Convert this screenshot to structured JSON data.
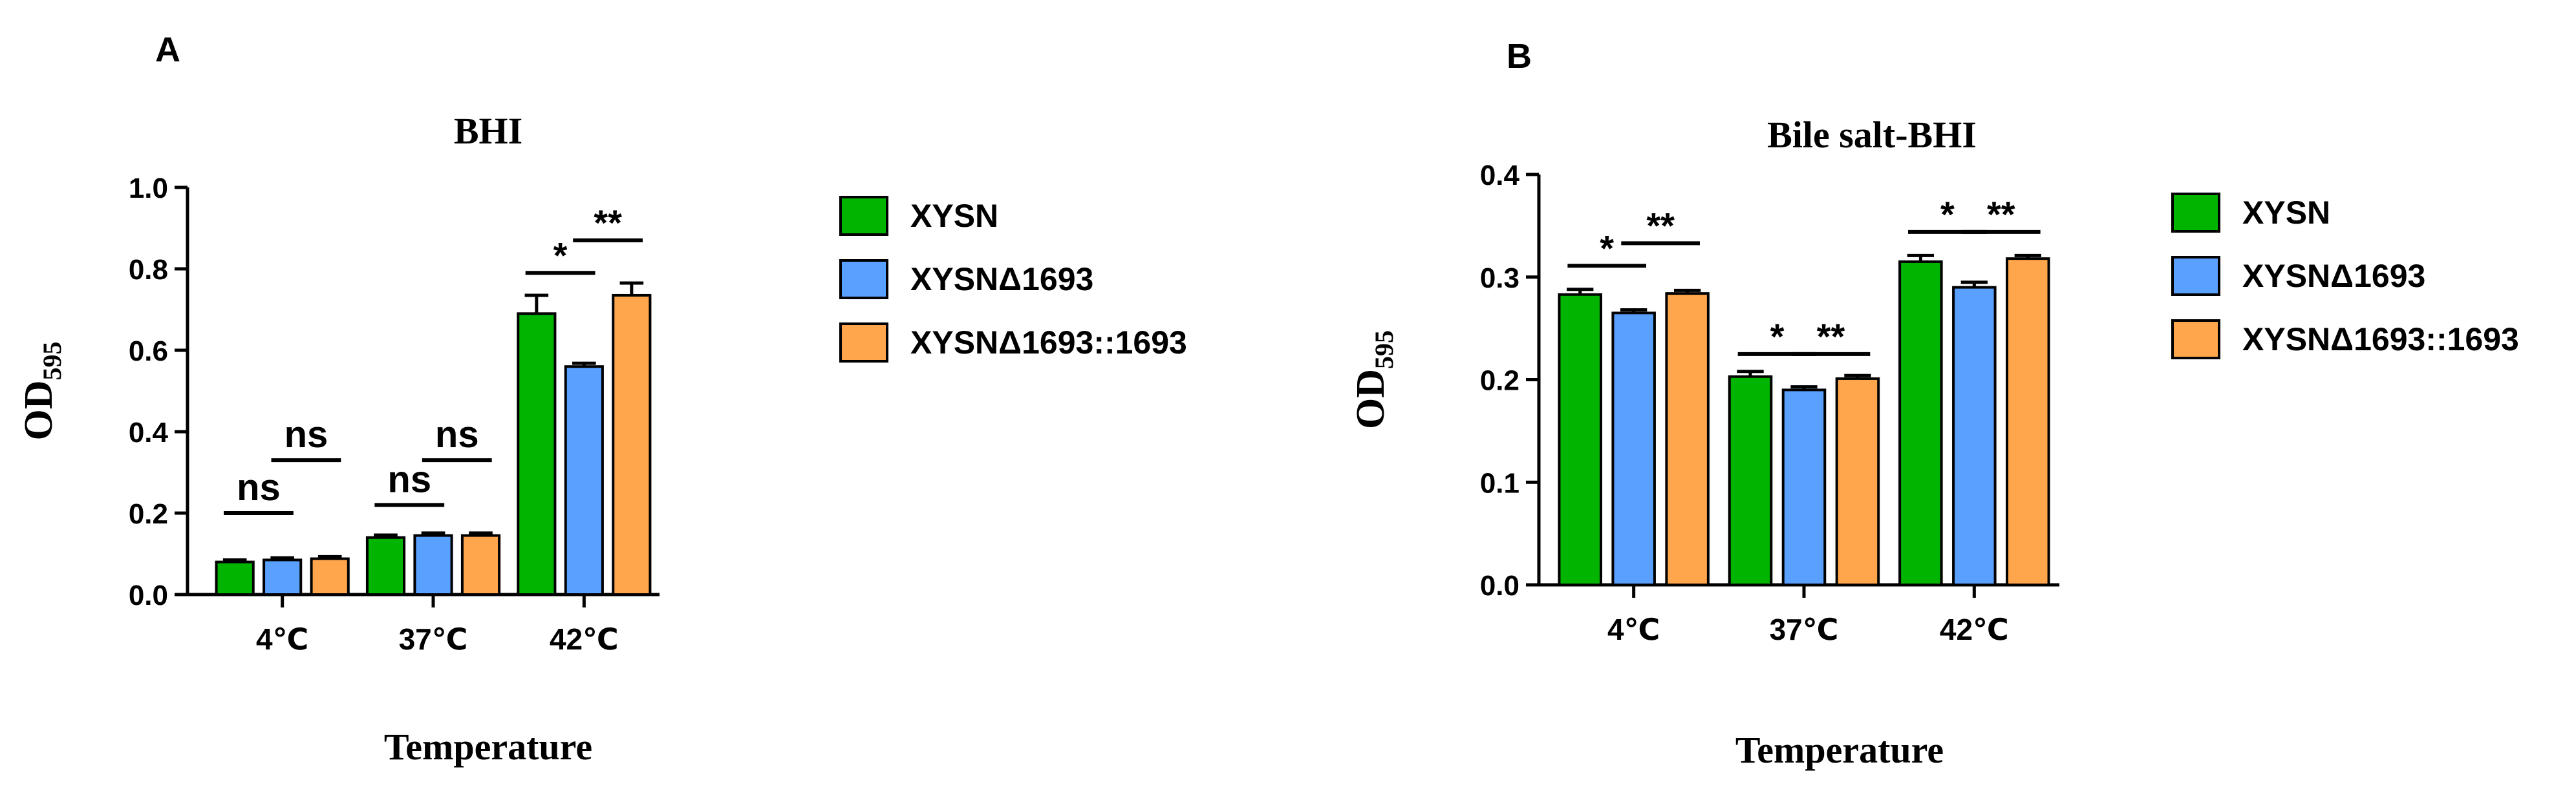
{
  "panels": [
    {
      "letter": "A",
      "chart_data": {
        "type": "bar",
        "title": "BHI",
        "xlabel": "Temperature",
        "ylabel": "OD",
        "ylabel_sub": "595",
        "ylim": [
          0,
          1.0
        ],
        "yticks": [
          "0.0",
          "0.2",
          "0.4",
          "0.6",
          "0.8",
          "1.0"
        ],
        "categories": [
          "4℃",
          "37℃",
          "42℃"
        ],
        "series": [
          {
            "name": "XYSN",
            "color": "#00b400",
            "values": [
              0.08,
              0.14,
              0.69
            ],
            "errors": [
              0.005,
              0.006,
              0.045
            ]
          },
          {
            "name": "XYSNΔ1693",
            "color": "#5aa0ff",
            "values": [
              0.085,
              0.145,
              0.56
            ],
            "errors": [
              0.005,
              0.006,
              0.008
            ]
          },
          {
            "name": "XYSNΔ1693::1693",
            "color": "#ffa64d",
            "values": [
              0.088,
              0.145,
              0.735
            ],
            "errors": [
              0.005,
              0.006,
              0.03
            ]
          }
        ],
        "legend_position": "right",
        "significance": [
          {
            "category": 0,
            "from": 0,
            "to": 1,
            "label": "ns",
            "y": 0.2
          },
          {
            "category": 0,
            "from": 1,
            "to": 2,
            "label": "ns",
            "y": 0.33
          },
          {
            "category": 1,
            "from": 0,
            "to": 1,
            "label": "ns",
            "y": 0.22
          },
          {
            "category": 1,
            "from": 1,
            "to": 2,
            "label": "ns",
            "y": 0.33
          },
          {
            "category": 2,
            "from": 0,
            "to": 1,
            "label": "*",
            "y": 0.79
          },
          {
            "category": 2,
            "from": 1,
            "to": 2,
            "label": "**",
            "y": 0.87
          }
        ]
      }
    },
    {
      "letter": "B",
      "chart_data": {
        "type": "bar",
        "title": "Bile salt-BHI",
        "xlabel": "Temperature",
        "ylabel": "OD",
        "ylabel_sub": "595",
        "ylim": [
          0,
          0.4
        ],
        "yticks": [
          "0.0",
          "0.1",
          "0.2",
          "0.3",
          "0.4"
        ],
        "categories": [
          "4℃",
          "37℃",
          "42℃"
        ],
        "series": [
          {
            "name": "XYSN",
            "color": "#00b400",
            "values": [
              0.283,
              0.203,
              0.315
            ],
            "errors": [
              0.005,
              0.005,
              0.006
            ]
          },
          {
            "name": "XYSNΔ1693",
            "color": "#5aa0ff",
            "values": [
              0.265,
              0.19,
              0.29
            ],
            "errors": [
              0.003,
              0.003,
              0.005
            ]
          },
          {
            "name": "XYSNΔ1693::1693",
            "color": "#ffa64d",
            "values": [
              0.284,
              0.201,
              0.318
            ],
            "errors": [
              0.003,
              0.003,
              0.003
            ]
          }
        ],
        "legend_position": "right",
        "significance": [
          {
            "category": 0,
            "from": 0,
            "to": 1,
            "label": "*",
            "y": 0.311
          },
          {
            "category": 0,
            "from": 1,
            "to": 2,
            "label": "**",
            "y": 0.333
          },
          {
            "category": 1,
            "from": 0,
            "to": 1,
            "label": "*",
            "y": 0.225
          },
          {
            "category": 1,
            "from": 1,
            "to": 2,
            "label": "**",
            "y": 0.225
          },
          {
            "category": 2,
            "from": 0,
            "to": 1,
            "label": "*",
            "y": 0.344
          },
          {
            "category": 2,
            "from": 1,
            "to": 2,
            "label": "**",
            "y": 0.344
          }
        ]
      }
    }
  ]
}
